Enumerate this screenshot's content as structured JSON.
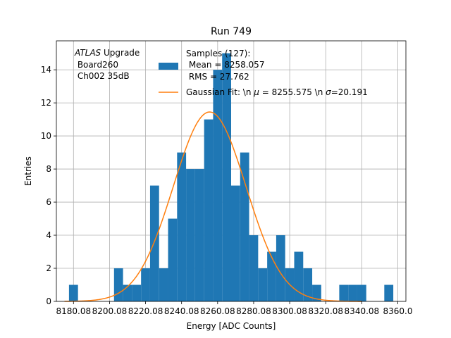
{
  "chart_data": {
    "type": "bar",
    "title": "Run 749",
    "xlabel": "Energy [ADC Counts]",
    "ylabel": "Entries",
    "xlim": [
      8170.5,
      8364.5
    ],
    "ylim": [
      0,
      15.75
    ],
    "grid": true,
    "bin_width": 5,
    "bins": [
      {
        "x": 8180,
        "count": 1
      },
      {
        "x": 8205,
        "count": 2
      },
      {
        "x": 8210,
        "count": 1
      },
      {
        "x": 8215,
        "count": 1
      },
      {
        "x": 8220,
        "count": 2
      },
      {
        "x": 8225,
        "count": 7
      },
      {
        "x": 8230,
        "count": 2
      },
      {
        "x": 8235,
        "count": 5
      },
      {
        "x": 8240,
        "count": 9
      },
      {
        "x": 8245,
        "count": 8
      },
      {
        "x": 8250,
        "count": 8
      },
      {
        "x": 8255,
        "count": 11
      },
      {
        "x": 8260,
        "count": 14
      },
      {
        "x": 8265,
        "count": 15
      },
      {
        "x": 8270,
        "count": 7
      },
      {
        "x": 8275,
        "count": 9
      },
      {
        "x": 8280,
        "count": 4
      },
      {
        "x": 8285,
        "count": 2
      },
      {
        "x": 8290,
        "count": 3
      },
      {
        "x": 8295,
        "count": 4
      },
      {
        "x": 8300,
        "count": 2
      },
      {
        "x": 8305,
        "count": 3
      },
      {
        "x": 8310,
        "count": 2
      },
      {
        "x": 8315,
        "count": 1
      },
      {
        "x": 8330,
        "count": 1
      },
      {
        "x": 8335,
        "count": 1
      },
      {
        "x": 8340,
        "count": 1
      },
      {
        "x": 8355,
        "count": 1
      }
    ],
    "fit": {
      "mu": 8255.575,
      "sigma": 20.191,
      "amplitude": 11.45
    },
    "x_ticks": [
      {
        "value": 8180,
        "label": "8180.08"
      },
      {
        "value": 8200,
        "label": "8200.08"
      },
      {
        "value": 8220,
        "label": "8220.08"
      },
      {
        "value": 8240,
        "label": "8240.08"
      },
      {
        "value": 8260,
        "label": "8260.08"
      },
      {
        "value": 8280,
        "label": "8280.08"
      },
      {
        "value": 8300,
        "label": "8300.08"
      },
      {
        "value": 8320,
        "label": "8320.08"
      },
      {
        "value": 8340,
        "label": "8340.08"
      },
      {
        "value": 8360,
        "label": "8360.0"
      }
    ],
    "y_ticks": [
      {
        "value": 0,
        "label": "0"
      },
      {
        "value": 2,
        "label": "2"
      },
      {
        "value": 4,
        "label": "4"
      },
      {
        "value": 6,
        "label": "6"
      },
      {
        "value": 8,
        "label": "8"
      },
      {
        "value": 10,
        "label": "10"
      },
      {
        "value": 12,
        "label": "12"
      },
      {
        "value": 14,
        "label": "14"
      }
    ],
    "annotation": {
      "atlas": "ATLAS",
      "upgrade": " Upgrade",
      "board": " Board260",
      "channel": " Ch002 35dB"
    },
    "legend": {
      "placement": "top-center",
      "samples_label": "Samples (127):",
      "mean_label": " Mean = 8258.057",
      "rms_label": " RMS = 27.762",
      "fit_prefix": "Gaussian Fit: \\n ",
      "fit_mu_symbol": "μ",
      "fit_mid": " = 8255.575 \\n ",
      "fit_sigma_symbol": "σ",
      "fit_suffix": "=20.191"
    },
    "colors": {
      "histogram": "#1f77b4",
      "fit": "#ff7f0e",
      "grid": "#b0b0b0",
      "axes": "#000000"
    }
  }
}
